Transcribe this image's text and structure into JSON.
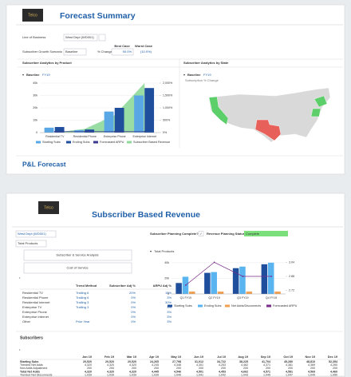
{
  "forecast_summary": {
    "logo": "Telco",
    "title": "Forecast Summary",
    "line_of_business": {
      "label": "Line of Business",
      "value": "West Dept (WD001)"
    },
    "growth_scenario": {
      "label": "Subscriber Growth Scenario",
      "value": "Baseline"
    },
    "cases": {
      "headers": [
        "Best Case",
        "Worst Case"
      ],
      "label": "% Change",
      "values": [
        "90.0%",
        "(10.0%)"
      ]
    },
    "product_panel": {
      "title": "Subscriber Analytics by Product",
      "scenario": "Baseline",
      "period": "FY19"
    },
    "state_panel": {
      "title": "Subscriber Analytics by State",
      "scenario": "Baseline",
      "period": "FY19",
      "subtitle": "Subscription % Change"
    },
    "footer": "P&L Forecast"
  },
  "revenue": {
    "logo": "Telco",
    "title": "Subscriber Based Revenue",
    "department": "West Dept (WD001)",
    "products": "Total Products",
    "buttons": [
      "Subscriber & Service Analysis",
      "Cost of Service"
    ],
    "planning_label": "Subscriber Planning Complete?",
    "status_label": "Revenue Planning Status",
    "status": "Complete",
    "chart_label": "Total Products",
    "trend_table": {
      "columns": [
        "Trend Method",
        "Subscriber Adj %",
        "ARPU Adj %"
      ],
      "rows": [
        [
          "Residential TV",
          "Trailing 6",
          "20%",
          "15%"
        ],
        [
          "Residential Phone",
          "Trailing 6",
          "0%",
          "3%"
        ],
        [
          "Residential Internet",
          "Trailing 3",
          "0%",
          "30%"
        ],
        [
          "Enterprise TV",
          "Trailing 3",
          "0%",
          "3%"
        ],
        [
          "Enterprise Phone",
          "",
          "0%",
          "3%"
        ],
        [
          "Enterprise Internet",
          "",
          "0%",
          "3%"
        ],
        [
          "Other",
          "Prior Year",
          "0%",
          "3%"
        ]
      ]
    },
    "subscribers": {
      "title": "Subscribers",
      "columns": [
        "Jan 19",
        "Feb 19",
        "Mar 19",
        "Apr 19",
        "May 19",
        "Jun 19",
        "Jul 19",
        "Aug 19",
        "Sep 19",
        "Oct 19",
        "Nov 19",
        "Dec 19"
      ],
      "rows": [
        [
          "Starting Subs",
          "20,520",
          "20,520",
          "20,520",
          "24,265",
          "27,798",
          "31,012",
          "34,722",
          "38,225",
          "41,704",
          "45,280",
          "48,810",
          "52,354"
        ],
        [
          "Trended Net Adds",
          "4,320",
          "4,320",
          "4,320",
          "4,245",
          "4,346",
          "4,301",
          "4,253",
          "4,462",
          "4,371",
          "4,381",
          "4,369",
          "4,260"
        ],
        [
          "Non Adds Adjustment",
          "200",
          "200",
          "200",
          "200",
          "200",
          "200",
          "200",
          "200",
          "200",
          "200",
          "200",
          "200"
        ],
        [
          "Total Net Adds",
          "4,320",
          "4,320",
          "4,320",
          "4,445",
          "4,546",
          "4,501",
          "4,453",
          "4,662",
          "4,571",
          "4,581",
          "4,569",
          "4,460"
        ],
        [
          "Trended Net Disconnects",
          "1,039",
          "1,039",
          "1,039",
          "1,039",
          "1,040",
          "1,041",
          "1,042",
          "1,043",
          "1,045",
          "1,047",
          "1,049",
          "1,050"
        ]
      ]
    }
  },
  "chart_data": [
    {
      "type": "combo",
      "categories": [
        "Residential TV",
        "Residential Phone",
        "Enterprise Phone",
        "Enterprise Internet"
      ],
      "ylim": [
        0,
        40000
      ],
      "yticks": [
        {
          "value": 0,
          "label": "0"
        },
        {
          "value": 10000,
          "label": "10k"
        },
        {
          "value": 20000,
          "label": "20k"
        },
        {
          "value": 30000,
          "label": "30k"
        },
        {
          "value": 40000,
          "label": "40k"
        }
      ],
      "y2lim": [
        0,
        2000
      ],
      "y2ticks": [
        {
          "value": 0,
          "label": "0%"
        },
        {
          "value": 500,
          "label": "500%"
        },
        {
          "value": 1000,
          "label": "1,000%"
        },
        {
          "value": 1500,
          "label": "1,500%"
        },
        {
          "value": 2000,
          "label": "2,000%"
        }
      ],
      "series": [
        {
          "name": "Starting Subs",
          "type": "bar",
          "color": "#5aa7e6",
          "values": [
            4000,
            2000,
            17000,
            30000
          ]
        },
        {
          "name": "Ending Subs",
          "type": "bar",
          "color": "#1f4e9c",
          "values": [
            4500,
            2500,
            20000,
            36000
          ]
        },
        {
          "name": "Forecasted ARPU",
          "type": "line",
          "axis": "y2",
          "color": "#3b3b8f",
          "values": [
            40,
            40,
            40,
            40
          ]
        },
        {
          "name": "Subscriber Based Revenue",
          "type": "area",
          "axis": "y2",
          "color": "#8fd99a",
          "values": [
            0,
            150,
            700,
            2000
          ]
        }
      ]
    },
    {
      "type": "combo",
      "categories": [
        "Q1 FY19",
        "Q2 FY19",
        "Q3 FY19",
        "Q4 FY19"
      ],
      "ylim": [
        0,
        45000
      ],
      "yticks": [
        {
          "value": 0,
          "label": "0"
        },
        {
          "value": 20000,
          "label": "20k"
        },
        {
          "value": 40000,
          "label": "40k"
        }
      ],
      "y2lim": [
        2.68,
        3.08
      ],
      "y2ticks": [
        2.72,
        2.88,
        3.04
      ],
      "series": [
        {
          "name": "Starting Subs",
          "type": "bar",
          "color": "#1f4e9c",
          "values": [
            14000,
            27000,
            33000,
            38000
          ]
        },
        {
          "name": "Ending Subs",
          "type": "bar",
          "color": "#5ab4f0",
          "values": [
            22000,
            28000,
            35000,
            40000
          ]
        },
        {
          "name": "Net Adds/Disconnects",
          "type": "bar",
          "color": "#f0a050",
          "values": [
            3000,
            3000,
            3000,
            3000
          ]
        },
        {
          "name": "Forecasted ARPU",
          "type": "line",
          "axis": "y2",
          "color": "#7a2a8a",
          "values": [
            2.78,
            3.04,
            2.88,
            2.88
          ]
        }
      ]
    }
  ]
}
